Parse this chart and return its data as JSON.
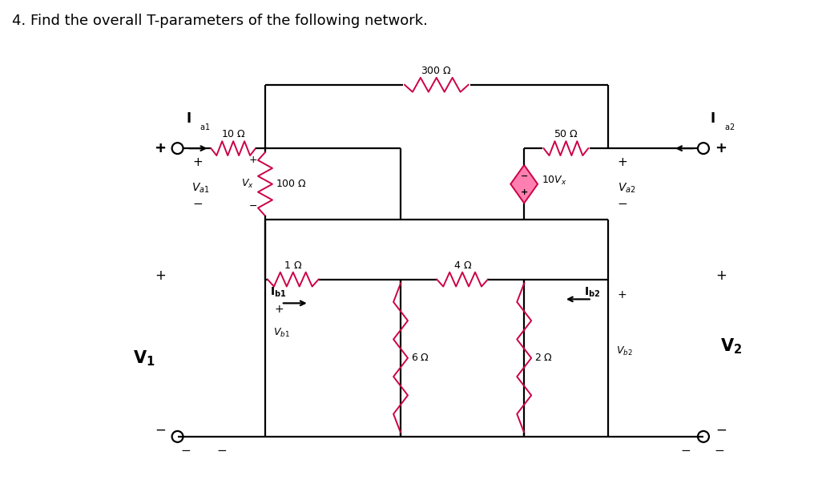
{
  "title": "4. Find the overall T-parameters of the following network.",
  "title_fontsize": 13,
  "bg_color": "#ffffff",
  "wire_color": "#000000",
  "resistor_color": "#cc0044",
  "diamond_fill": "#ff80b0",
  "diamond_edge": "#cc0044",
  "text_color": "#000000",
  "fig_width": 10.16,
  "fig_height": 6.19
}
